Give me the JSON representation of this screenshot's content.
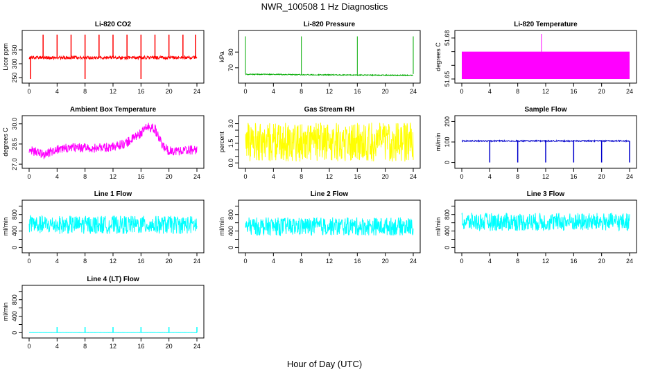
{
  "title": "NWR_100508  1 Hz Diagnostics",
  "xlabel": "Hour of Day (UTC)",
  "chart_data": [
    {
      "type": "line",
      "title": "Li-820 CO2",
      "ylabel": "Licor ppm",
      "color": "#ff0000",
      "xlim": [
        0,
        24
      ],
      "ylim": [
        240,
        410
      ],
      "xticks": [
        0,
        4,
        8,
        12,
        16,
        20,
        24
      ],
      "yticks": [
        250,
        300,
        350
      ],
      "ytick_labels": [
        "250",
        "300",
        "350"
      ],
      "series": [
        {
          "x": [
            0,
            4,
            8,
            12,
            16,
            20,
            24
          ],
          "y": [
            322,
            322,
            322,
            322,
            322,
            322,
            322
          ]
        }
      ]
    },
    {
      "type": "line",
      "title": "Li-820 Pressure",
      "ylabel": "kPa",
      "color": "#00aa00",
      "xlim": [
        0,
        24
      ],
      "ylim": [
        62,
        92
      ],
      "xticks": [
        0,
        4,
        8,
        12,
        16,
        20,
        24
      ],
      "yticks": [
        70,
        80
      ],
      "ytick_labels": [
        "70",
        "80"
      ],
      "series": [
        {
          "x": [
            0,
            4,
            8,
            12,
            16,
            20,
            24
          ],
          "y": [
            65.8,
            65.8,
            65.6,
            65.5,
            65.4,
            65.3,
            65.2
          ]
        }
      ]
    },
    {
      "type": "area",
      "title": "Li-820 Temperature",
      "ylabel": "degrees C",
      "color": "#ff00ff",
      "xlim": [
        0,
        24
      ],
      "ylim": [
        51.649,
        51.6835
      ],
      "xticks": [
        0,
        4,
        8,
        12,
        16,
        20,
        24
      ],
      "yticks": [
        51.65,
        51.66,
        51.67,
        51.68
      ],
      "ytick_labels": [
        "51.65",
        "",
        "",
        "51.68"
      ],
      "series": [
        {
          "x": [
            0,
            24
          ],
          "y_low": [
            51.65,
            51.65
          ],
          "y_high": [
            51.67,
            51.67
          ]
        }
      ]
    },
    {
      "type": "line",
      "title": "Ambient Box Temperature",
      "ylabel": "degrees C",
      "color": "#ff00ff",
      "xlim": [
        0,
        24
      ],
      "ylim": [
        26.9,
        30.4
      ],
      "xticks": [
        0,
        4,
        8,
        12,
        16,
        20,
        24
      ],
      "yticks": [
        27.0,
        28.5,
        30.0
      ],
      "ytick_labels": [
        "27.0",
        "28.5",
        "30.0"
      ],
      "series": [
        {
          "x": [
            0,
            2,
            4,
            6,
            8,
            10,
            12,
            14,
            16,
            17,
            18,
            19,
            20,
            22,
            24
          ],
          "y": [
            28.1,
            27.7,
            28.1,
            28.2,
            28.2,
            28.2,
            28.3,
            28.6,
            29.3,
            29.8,
            29.6,
            28.4,
            28.0,
            28.0,
            28.1
          ]
        }
      ]
    },
    {
      "type": "line",
      "title": "Gas Stream RH",
      "ylabel": "percent",
      "color": "#ffff00",
      "xlim": [
        0,
        24
      ],
      "ylim": [
        -0.2,
        3.4
      ],
      "xticks": [
        0,
        4,
        8,
        12,
        16,
        20,
        24
      ],
      "yticks": [
        0.0,
        0.5,
        1.0,
        1.5,
        2.0,
        2.5,
        3.0
      ],
      "ytick_labels": [
        "0.0",
        "",
        "",
        "1.5",
        "",
        "",
        "3.0"
      ],
      "series": [
        {
          "x": [
            0,
            24
          ],
          "y": [
            1.6,
            1.6
          ]
        }
      ]
    },
    {
      "type": "line",
      "title": "Sample Flow",
      "ylabel": "ml/min",
      "color": "#0000cc",
      "xlim": [
        0,
        24
      ],
      "ylim": [
        -15,
        215
      ],
      "xticks": [
        0,
        4,
        8,
        12,
        16,
        20,
        24
      ],
      "yticks": [
        0,
        100,
        200
      ],
      "ytick_labels": [
        "0",
        "100",
        "200"
      ],
      "series": [
        {
          "x": [
            0,
            24
          ],
          "y": [
            105,
            105
          ]
        }
      ]
    },
    {
      "type": "line",
      "title": "Line 1 Flow",
      "ylabel": "ml/min",
      "color": "#00ffff",
      "xlim": [
        0,
        24
      ],
      "ylim": [
        -60,
        1080
      ],
      "xticks": [
        0,
        4,
        8,
        12,
        16,
        20,
        24
      ],
      "yticks": [
        0,
        200,
        400,
        600,
        800,
        1000
      ],
      "ytick_labels": [
        "0",
        "",
        "400",
        "",
        "800",
        ""
      ],
      "series": [
        {
          "x": [
            0,
            24
          ],
          "y": [
            550,
            550
          ]
        }
      ]
    },
    {
      "type": "line",
      "title": "Line 2 Flow",
      "ylabel": "ml/min",
      "color": "#00ffff",
      "xlim": [
        0,
        24
      ],
      "ylim": [
        -60,
        1080
      ],
      "xticks": [
        0,
        4,
        8,
        12,
        16,
        20,
        24
      ],
      "yticks": [
        0,
        200,
        400,
        600,
        800,
        1000
      ],
      "ytick_labels": [
        "0",
        "",
        "400",
        "",
        "800",
        ""
      ],
      "series": [
        {
          "x": [
            0,
            24
          ],
          "y": [
            510,
            510
          ]
        }
      ]
    },
    {
      "type": "line",
      "title": "Line 3 Flow",
      "ylabel": "ml/min",
      "color": "#00ffff",
      "xlim": [
        0,
        24
      ],
      "ylim": [
        -60,
        1080
      ],
      "xticks": [
        0,
        4,
        8,
        12,
        16,
        20,
        24
      ],
      "yticks": [
        0,
        200,
        400,
        600,
        800,
        1000
      ],
      "ytick_labels": [
        "0",
        "",
        "400",
        "",
        "800",
        ""
      ],
      "series": [
        {
          "x": [
            0,
            24
          ],
          "y": [
            620,
            620
          ]
        }
      ]
    },
    {
      "type": "line",
      "title": "Line 4 (LT) Flow",
      "ylabel": "ml/min",
      "color": "#00ffff",
      "xlim": [
        0,
        24
      ],
      "ylim": [
        -60,
        1080
      ],
      "xticks": [
        0,
        4,
        8,
        12,
        16,
        20,
        24
      ],
      "yticks": [
        0,
        200,
        400,
        600,
        800,
        1000
      ],
      "ytick_labels": [
        "0",
        "",
        "400",
        "",
        "800",
        ""
      ],
      "series": [
        {
          "x": [
            0,
            4,
            8,
            12,
            16,
            20,
            24
          ],
          "y": [
            5,
            5,
            5,
            5,
            5,
            5,
            5
          ]
        }
      ]
    }
  ]
}
